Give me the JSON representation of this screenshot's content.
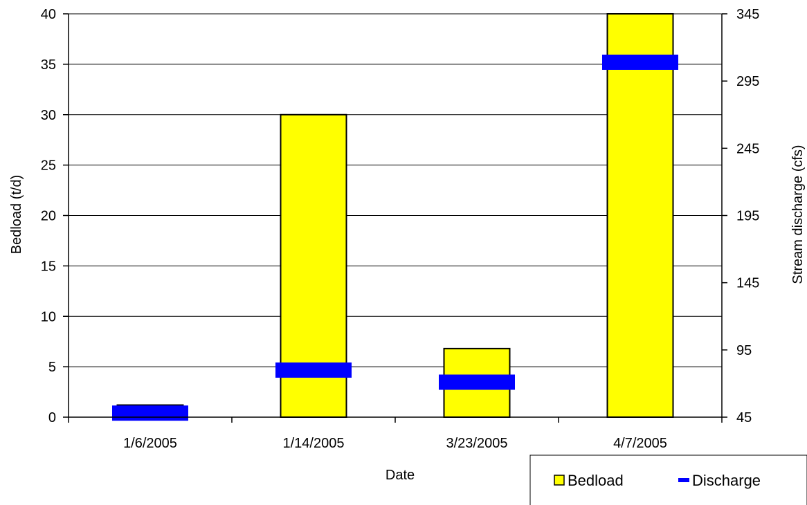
{
  "chart_data": {
    "type": "bar",
    "categories": [
      "1/6/2005",
      "1/14/2005",
      "3/23/2005",
      "4/7/2005"
    ],
    "series": [
      {
        "name": "Bedload",
        "kind": "bar",
        "axis": "left",
        "values": [
          1.2,
          30,
          6.8,
          40
        ]
      },
      {
        "name": "Discharge",
        "kind": "marker",
        "axis": "right",
        "values": [
          48,
          80,
          71,
          309
        ]
      }
    ],
    "xlabel": "Date",
    "ylabel": "Bedload (t/d)",
    "y2label": "Stream discharge (cfs)",
    "ylim": [
      0,
      40
    ],
    "y2lim": [
      45,
      345
    ],
    "yticks": [
      0,
      5,
      10,
      15,
      20,
      25,
      30,
      35,
      40
    ],
    "y2ticks": [
      45,
      95,
      145,
      195,
      245,
      295,
      345
    ],
    "grid": true,
    "legend_position": "bottom-right",
    "colors": {
      "bar_fill": "#ffff00",
      "bar_stroke": "#000000",
      "marker": "#0000ff"
    }
  }
}
